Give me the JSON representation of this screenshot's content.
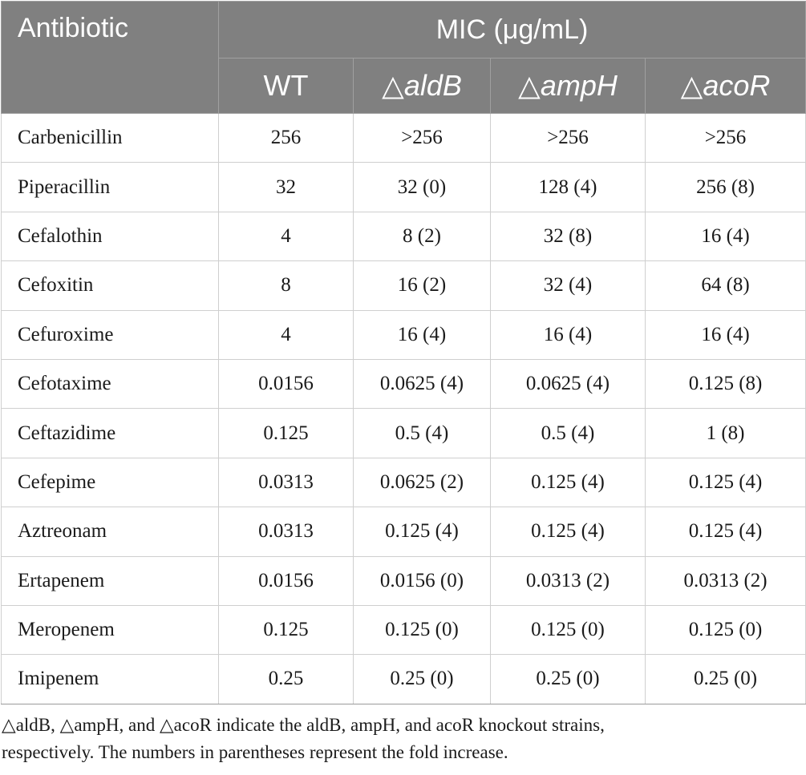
{
  "table": {
    "header": {
      "antibiotic": "Antibiotic",
      "mic": "MIC (μg/mL)",
      "strains": [
        {
          "symbol": "△",
          "name": "WT",
          "italic": false,
          "show_symbol": false
        },
        {
          "symbol": "△",
          "name": "aldB",
          "italic": true,
          "show_symbol": true
        },
        {
          "symbol": "△",
          "name": "ampH",
          "italic": true,
          "show_symbol": true
        },
        {
          "symbol": "△",
          "name": "acoR",
          "italic": true,
          "show_symbol": true
        }
      ]
    },
    "rows": [
      {
        "antibiotic": "Carbenicillin",
        "values": [
          "256",
          ">256",
          ">256",
          ">256"
        ]
      },
      {
        "antibiotic": "Piperacillin",
        "values": [
          "32",
          "32 (0)",
          "128 (4)",
          "256 (8)"
        ]
      },
      {
        "antibiotic": "Cefalothin",
        "values": [
          "4",
          "8 (2)",
          "32 (8)",
          "16 (4)"
        ]
      },
      {
        "antibiotic": "Cefoxitin",
        "values": [
          "8",
          "16 (2)",
          "32 (4)",
          "64 (8)"
        ]
      },
      {
        "antibiotic": "Cefuroxime",
        "values": [
          "4",
          "16 (4)",
          "16 (4)",
          "16 (4)"
        ]
      },
      {
        "antibiotic": "Cefotaxime",
        "values": [
          "0.0156",
          "0.0625 (4)",
          "0.0625 (4)",
          "0.125 (8)"
        ]
      },
      {
        "antibiotic": "Ceftazidime",
        "values": [
          "0.125",
          "0.5 (4)",
          "0.5 (4)",
          "1 (8)"
        ]
      },
      {
        "antibiotic": "Cefepime",
        "values": [
          "0.0313",
          "0.0625 (2)",
          "0.125 (4)",
          "0.125 (4)"
        ]
      },
      {
        "antibiotic": "Aztreonam",
        "values": [
          "0.0313",
          "0.125 (4)",
          "0.125 (4)",
          "0.125 (4)"
        ]
      },
      {
        "antibiotic": "Ertapenem",
        "values": [
          "0.0156",
          "0.0156 (0)",
          "0.0313 (2)",
          "0.0313 (2)"
        ]
      },
      {
        "antibiotic": "Meropenem",
        "values": [
          "0.125",
          "0.125 (0)",
          "0.125 (0)",
          "0.125 (0)"
        ]
      },
      {
        "antibiotic": "Imipenem",
        "values": [
          "0.25",
          "0.25 (0)",
          "0.25 (0)",
          "0.25 (0)"
        ]
      }
    ]
  },
  "footnote": {
    "line1": "△aldB, △ampH, and △acoR indicate the aldB, ampH, and acoR knockout strains,",
    "line2": "respectively. The numbers in parentheses represent the fold increase."
  },
  "colors": {
    "header_bg": "#808080",
    "header_text": "#ffffff",
    "body_text": "#1a1a1a",
    "grid": "#cfcfcf"
  }
}
